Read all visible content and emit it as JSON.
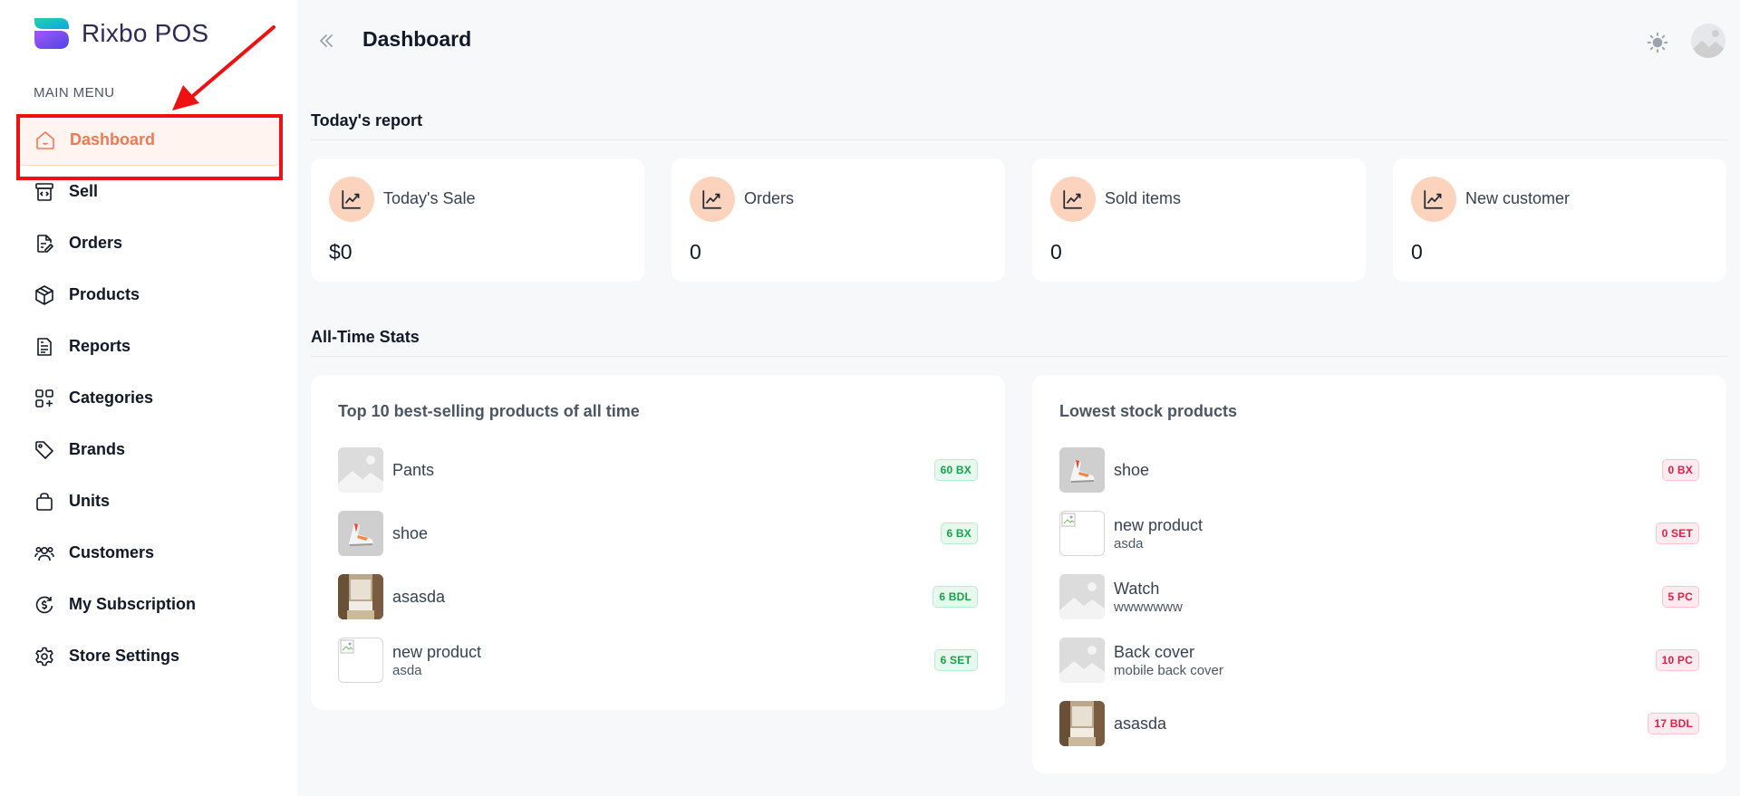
{
  "brand": {
    "name": "Rixbo POS"
  },
  "sidebar": {
    "heading": "MAIN MENU",
    "items": [
      {
        "label": "Dashboard",
        "icon": "home-icon",
        "active": true
      },
      {
        "label": "Sell",
        "icon": "register-icon"
      },
      {
        "label": "Orders",
        "icon": "document-edit-icon"
      },
      {
        "label": "Products",
        "icon": "box-icon"
      },
      {
        "label": "Reports",
        "icon": "report-icon"
      },
      {
        "label": "Categories",
        "icon": "grid-icon"
      },
      {
        "label": "Brands",
        "icon": "tag-icon"
      },
      {
        "label": "Units",
        "icon": "bag-icon"
      },
      {
        "label": "Customers",
        "icon": "users-icon"
      },
      {
        "label": "My Subscription",
        "icon": "subscription-icon"
      },
      {
        "label": "Store Settings",
        "icon": "gear-icon"
      }
    ]
  },
  "header": {
    "title": "Dashboard"
  },
  "today": {
    "title": "Today's report",
    "cards": [
      {
        "label": "Today's Sale",
        "value": "$0"
      },
      {
        "label": "Orders",
        "value": "0"
      },
      {
        "label": "Sold items",
        "value": "0"
      },
      {
        "label": "New customer",
        "value": "0"
      }
    ]
  },
  "alltime": {
    "title": "All-Time Stats",
    "best_selling": {
      "title": "Top 10 best-selling products of all time",
      "items": [
        {
          "name": "Pants",
          "sub": "",
          "badge": "60 BX",
          "thumb": "placeholder"
        },
        {
          "name": "shoe",
          "sub": "",
          "badge": "6 BX",
          "thumb": "shoe"
        },
        {
          "name": "asasda",
          "sub": "",
          "badge": "6 BDL",
          "thumb": "room"
        },
        {
          "name": "new product",
          "sub": "asda",
          "badge": "6 SET",
          "thumb": "broken"
        }
      ]
    },
    "lowest_stock": {
      "title": "Lowest stock products",
      "items": [
        {
          "name": "shoe",
          "sub": "",
          "badge": "0 BX",
          "thumb": "shoe"
        },
        {
          "name": "new product",
          "sub": "asda",
          "badge": "0 SET",
          "thumb": "broken"
        },
        {
          "name": "Watch",
          "sub": "wwwwwww",
          "badge": "5 PC",
          "thumb": "placeholder"
        },
        {
          "name": "Back cover",
          "sub": "mobile back cover",
          "badge": "10 PC",
          "thumb": "placeholder"
        },
        {
          "name": "asasda",
          "sub": "",
          "badge": "17 BDL",
          "thumb": "room"
        }
      ]
    }
  },
  "colors": {
    "accent": "#ef7a52",
    "annotation": "#ef1111"
  }
}
